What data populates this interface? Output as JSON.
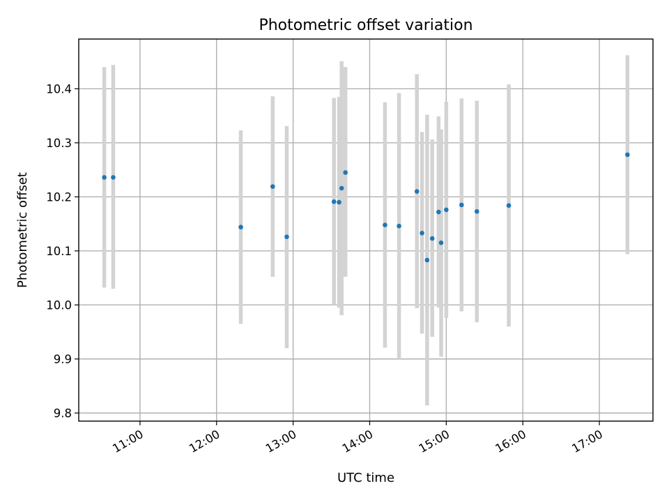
{
  "chart_data": {
    "type": "scatter",
    "title": "Photometric offset variation",
    "xlabel": "UTC time",
    "ylabel": "Photometric offset",
    "xlim": [
      "10:12",
      "17:42"
    ],
    "ylim": [
      9.785,
      10.492
    ],
    "x_ticks": [
      "11:00",
      "12:00",
      "13:00",
      "14:00",
      "15:00",
      "16:00",
      "17:00"
    ],
    "y_ticks": [
      9.8,
      9.9,
      10.0,
      10.1,
      10.2,
      10.3,
      10.4
    ],
    "y_tick_labels": [
      "9.8",
      "9.9",
      "10.0",
      "10.1",
      "10.2",
      "10.3",
      "10.4"
    ],
    "grid": true,
    "x_tick_rotation": 30,
    "marker_color": "#1f77b4",
    "errorbar_color": "#d3d3d3",
    "points": [
      {
        "t": "10:32",
        "y": 10.236,
        "low": 10.032,
        "high": 10.44
      },
      {
        "t": "10:39",
        "y": 10.236,
        "low": 10.03,
        "high": 10.444
      },
      {
        "t": "12:19",
        "y": 10.144,
        "low": 9.965,
        "high": 10.323
      },
      {
        "t": "12:44",
        "y": 10.219,
        "low": 10.052,
        "high": 10.386
      },
      {
        "t": "12:55",
        "y": 10.126,
        "low": 9.92,
        "high": 10.331
      },
      {
        "t": "13:32",
        "y": 10.191,
        "low": 10.0,
        "high": 10.383
      },
      {
        "t": "13:36",
        "y": 10.19,
        "low": 9.995,
        "high": 10.385
      },
      {
        "t": "13:38",
        "y": 10.216,
        "low": 9.981,
        "high": 10.451
      },
      {
        "t": "13:41",
        "y": 10.245,
        "low": 10.052,
        "high": 10.44
      },
      {
        "t": "14:12",
        "y": 10.148,
        "low": 9.921,
        "high": 10.375
      },
      {
        "t": "14:23",
        "y": 10.146,
        "low": 9.9,
        "high": 10.392
      },
      {
        "t": "14:37",
        "y": 10.21,
        "low": 9.994,
        "high": 10.427
      },
      {
        "t": "14:41",
        "y": 10.133,
        "low": 9.947,
        "high": 10.32
      },
      {
        "t": "14:45",
        "y": 10.083,
        "low": 9.814,
        "high": 10.352
      },
      {
        "t": "14:49",
        "y": 10.123,
        "low": 9.941,
        "high": 10.306
      },
      {
        "t": "14:54",
        "y": 10.172,
        "low": 9.995,
        "high": 10.349
      },
      {
        "t": "14:56",
        "y": 10.115,
        "low": 9.904,
        "high": 10.325
      },
      {
        "t": "15:00",
        "y": 10.176,
        "low": 9.976,
        "high": 10.376
      },
      {
        "t": "15:12",
        "y": 10.185,
        "low": 9.988,
        "high": 10.382
      },
      {
        "t": "15:24",
        "y": 10.173,
        "low": 9.968,
        "high": 10.378
      },
      {
        "t": "15:49",
        "y": 10.184,
        "low": 9.96,
        "high": 10.408
      },
      {
        "t": "17:22",
        "y": 10.278,
        "low": 10.094,
        "high": 10.462
      }
    ]
  }
}
